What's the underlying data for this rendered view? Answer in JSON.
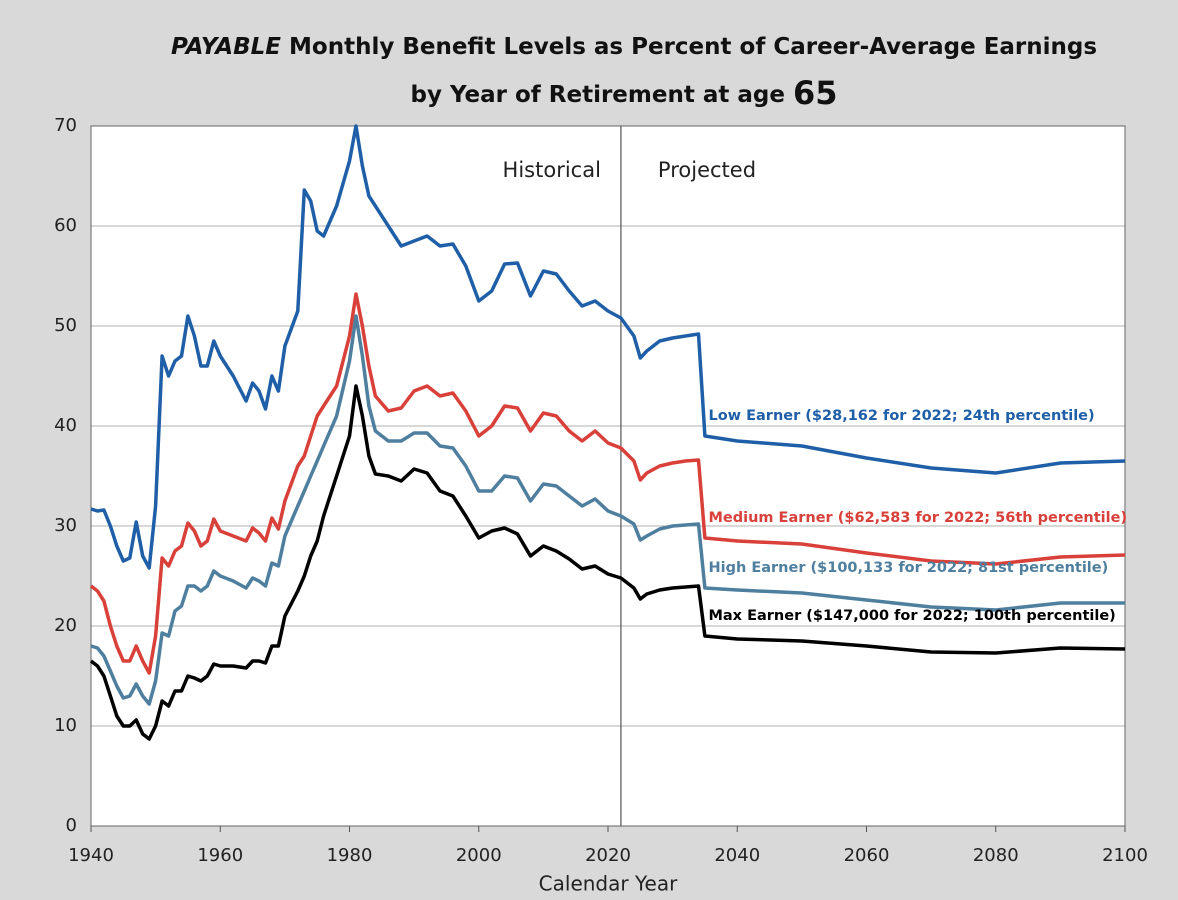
{
  "chart_data": {
    "type": "line",
    "title_emphasis": "PAYABLE",
    "title": "Monthly Benefit Levels as Percent of Career-Average Earnings",
    "subtitle": "by Year of Retirement at age",
    "subtitle_emphasis": "65",
    "xlabel": "Calendar Year",
    "annotations": [
      "Historical",
      "Projected"
    ],
    "divider_x": 2022,
    "xlim": [
      1940,
      2100
    ],
    "xticks": [
      1940,
      1960,
      1980,
      2000,
      2020,
      2040,
      2060,
      2080,
      2100
    ],
    "ylim": [
      0,
      70
    ],
    "yticks": [
      0,
      10,
      20,
      30,
      40,
      50,
      60,
      70
    ],
    "grid": true,
    "x": [
      1940,
      1941,
      1942,
      1943,
      1944,
      1945,
      1946,
      1947,
      1948,
      1949,
      1950,
      1951,
      1952,
      1953,
      1954,
      1955,
      1956,
      1957,
      1958,
      1959,
      1960,
      1962,
      1964,
      1965,
      1966,
      1967,
      1968,
      1969,
      1970,
      1972,
      1973,
      1974,
      1975,
      1976,
      1978,
      1980,
      1981,
      1982,
      1983,
      1984,
      1986,
      1988,
      1990,
      1992,
      1994,
      1996,
      1998,
      2000,
      2002,
      2004,
      2006,
      2008,
      2010,
      2012,
      2014,
      2016,
      2018,
      2020,
      2022,
      2024,
      2025,
      2026,
      2028,
      2030,
      2032,
      2034,
      2035,
      2040,
      2050,
      2060,
      2070,
      2080,
      2090,
      2100
    ],
    "series": [
      {
        "name": "Low Earner ($28,162 for 2022; 24th percentile)",
        "color": "#1f5fa8",
        "values": [
          31.7,
          31.5,
          31.6,
          30,
          28,
          26.5,
          26.8,
          30.4,
          27,
          25.8,
          32,
          47,
          45,
          46.5,
          47,
          51,
          49,
          46,
          46,
          48.5,
          47,
          45,
          42.5,
          44.3,
          43.5,
          41.7,
          45,
          43.5,
          48,
          51.5,
          63.6,
          62.5,
          59.5,
          59,
          62,
          66.5,
          70,
          66,
          63,
          62,
          60,
          58,
          58.5,
          59,
          58,
          58.2,
          56,
          52.5,
          53.5,
          56.2,
          56.3,
          53,
          55.5,
          55.2,
          53.5,
          52,
          52.5,
          51.5,
          50.8,
          49,
          46.8,
          47.5,
          48.5,
          48.8,
          49,
          49.2,
          39,
          38.5,
          38,
          36.8,
          35.8,
          35.3,
          36.3,
          36.5
        ]
      },
      {
        "name": "Medium Earner ($62,583 for 2022; 56th percentile)",
        "color": "#d9403a",
        "values": [
          24,
          23.5,
          22.5,
          20,
          18,
          16.5,
          16.5,
          18,
          16.5,
          15.3,
          19,
          26.8,
          26,
          27.5,
          28,
          30.3,
          29.5,
          28,
          28.5,
          30.7,
          29.5,
          29,
          28.5,
          29.8,
          29.3,
          28.5,
          30.8,
          29.7,
          32.5,
          36,
          37,
          39,
          41,
          42,
          44,
          49,
          53.2,
          50,
          46,
          43,
          41.5,
          41.8,
          43.5,
          44,
          43,
          43.3,
          41.5,
          39,
          40,
          42,
          41.8,
          39.5,
          41.3,
          41,
          39.5,
          38.5,
          39.5,
          38.3,
          37.8,
          36.5,
          34.6,
          35.3,
          36,
          36.3,
          36.5,
          36.6,
          28.8,
          28.5,
          28.2,
          27.3,
          26.5,
          26.2,
          26.9,
          27.1
        ]
      },
      {
        "name": "High Earner ($100,133 for 2022; 81st percentile)",
        "color": "#4f7f9f",
        "values": [
          18,
          17.8,
          17,
          15.5,
          14,
          12.8,
          13,
          14.2,
          13,
          12.2,
          14.5,
          19.3,
          19,
          21.5,
          22,
          24,
          24,
          23.5,
          24,
          25.5,
          25,
          24.5,
          23.8,
          24.8,
          24.5,
          24,
          26.3,
          26,
          29,
          32,
          33.5,
          35,
          36.5,
          38,
          41,
          46.5,
          51,
          47,
          42,
          39.5,
          38.5,
          38.5,
          39.3,
          39.3,
          38,
          37.8,
          36,
          33.5,
          33.5,
          35,
          34.8,
          32.5,
          34.2,
          34,
          33,
          32,
          32.7,
          31.5,
          31,
          30.2,
          28.6,
          29,
          29.7,
          30,
          30.1,
          30.2,
          23.8,
          23.6,
          23.3,
          22.6,
          21.9,
          21.6,
          22.3,
          22.3
        ]
      },
      {
        "name": "Max Earner ($147,000 for 2022; 100th percentile)",
        "color": "#000000",
        "values": [
          16.5,
          16,
          15,
          13,
          11,
          10,
          10,
          10.6,
          9.2,
          8.7,
          10,
          12.5,
          12,
          13.5,
          13.5,
          15,
          14.8,
          14.5,
          15,
          16.2,
          16,
          16,
          15.8,
          16.5,
          16.5,
          16.3,
          18,
          18,
          21,
          23.5,
          25,
          27,
          28.5,
          31,
          35,
          39,
          44,
          41,
          37,
          35.2,
          35,
          34.5,
          35.7,
          35.3,
          33.5,
          33,
          31,
          28.8,
          29.5,
          29.8,
          29.2,
          27,
          28,
          27.5,
          26.7,
          25.7,
          26,
          25.2,
          24.8,
          23.8,
          22.7,
          23.2,
          23.6,
          23.8,
          23.9,
          24,
          19,
          18.7,
          18.5,
          18,
          17.4,
          17.3,
          17.8,
          17.7
        ]
      }
    ]
  }
}
